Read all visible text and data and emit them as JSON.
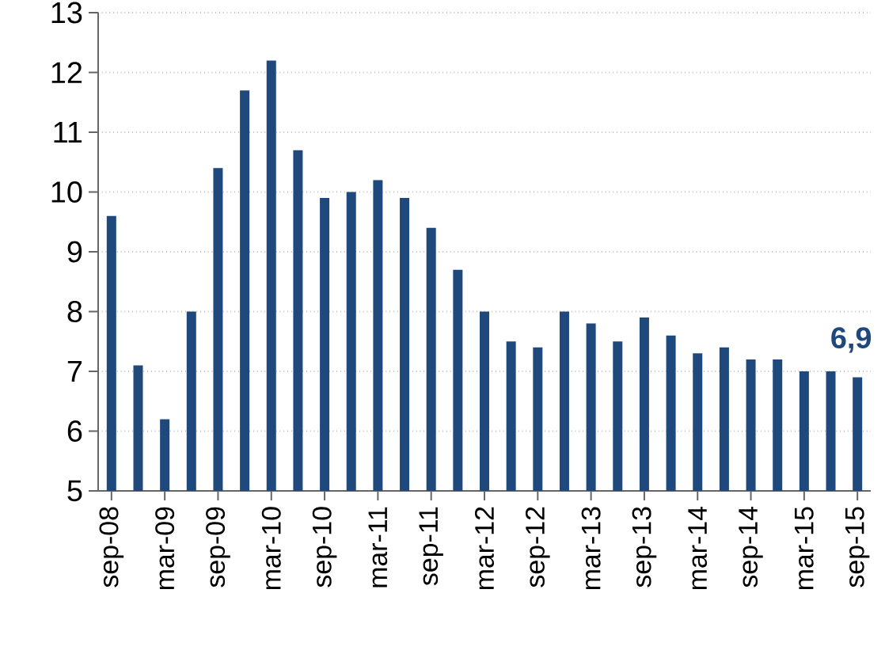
{
  "chart_data": {
    "type": "bar",
    "categories": [
      "sep-08",
      null,
      "mar-09",
      null,
      "sep-09",
      null,
      "mar-10",
      null,
      "sep-10",
      null,
      "mar-11",
      null,
      "sep-11",
      null,
      "mar-12",
      null,
      "sep-12",
      null,
      "mar-13",
      null,
      "sep-13",
      null,
      "mar-14",
      null,
      "sep-14",
      null,
      "mar-15",
      null,
      "sep-15"
    ],
    "values": [
      9.6,
      7.1,
      6.2,
      8.0,
      10.4,
      11.7,
      12.2,
      10.7,
      9.9,
      10.0,
      10.2,
      9.9,
      9.4,
      8.7,
      8.0,
      7.5,
      7.4,
      8.0,
      7.8,
      7.5,
      7.9,
      7.6,
      7.3,
      7.4,
      7.2,
      7.2,
      7.0,
      7.0,
      6.9
    ],
    "value_labels": [
      null,
      null,
      null,
      null,
      null,
      null,
      null,
      null,
      null,
      null,
      null,
      null,
      null,
      null,
      null,
      null,
      null,
      null,
      null,
      null,
      null,
      null,
      null,
      null,
      null,
      null,
      null,
      null,
      "6,9"
    ],
    "color": "#1f497d",
    "ylim": [
      5,
      13
    ],
    "yticks": [
      5,
      6,
      7,
      8,
      9,
      10,
      11,
      12,
      13
    ],
    "grid": "y"
  }
}
